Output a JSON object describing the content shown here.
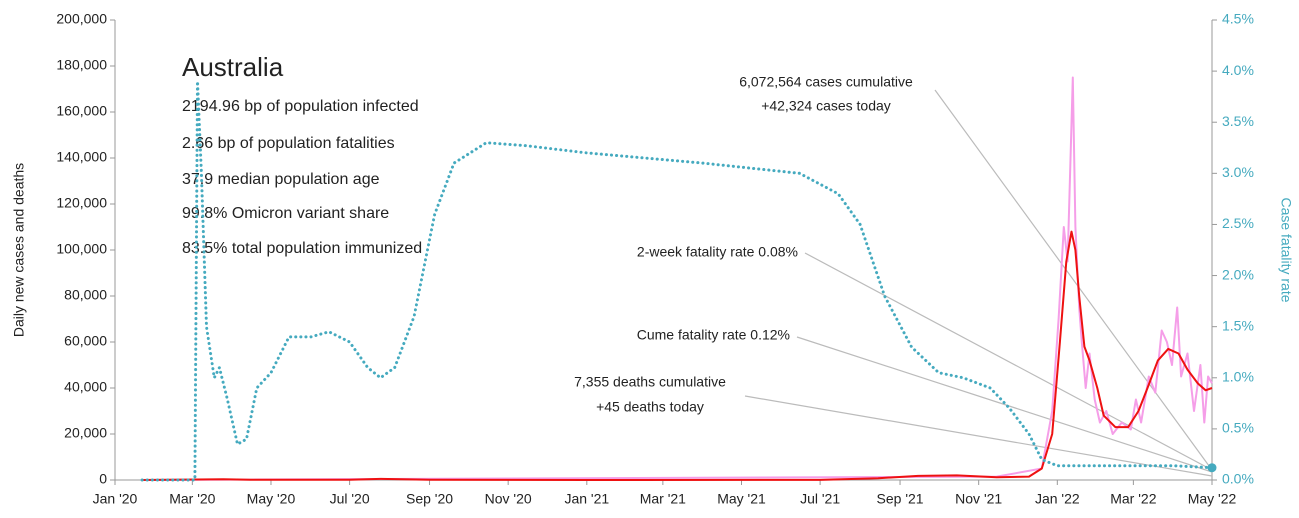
{
  "chart_data": {
    "type": "line",
    "title": "Australia",
    "info": [
      "2194.96 bp of population infected",
      "2.66 bp of population fatalities",
      "37.9 median population age",
      "99.8% Omicron variant share",
      "83.5% total population immunized"
    ],
    "annotations": [
      "6,072,564 cases cumulative",
      "+42,324 cases today",
      "2-week fatality rate 0.08%",
      "Cume fatality rate 0.12%",
      "7,355 deaths cumulative",
      "+45 deaths today"
    ],
    "ylabel": "Daily new cases and deaths",
    "y2label": "Case fatality rate",
    "xlim": [
      "2020-01-01",
      "2022-05-01"
    ],
    "xticks": [
      {
        "value": "2020-01-01",
        "label": "Jan '20"
      },
      {
        "value": "2020-03-01",
        "label": "Mar '20"
      },
      {
        "value": "2020-05-01",
        "label": "May '20"
      },
      {
        "value": "2020-07-01",
        "label": "Jul '20"
      },
      {
        "value": "2020-09-01",
        "label": "Sep '20"
      },
      {
        "value": "2020-11-01",
        "label": "Nov '20"
      },
      {
        "value": "2021-01-01",
        "label": "Jan '21"
      },
      {
        "value": "2021-03-01",
        "label": "Mar '21"
      },
      {
        "value": "2021-05-01",
        "label": "May '21"
      },
      {
        "value": "2021-07-01",
        "label": "Jul '21"
      },
      {
        "value": "2021-09-01",
        "label": "Sep '21"
      },
      {
        "value": "2021-11-01",
        "label": "Nov '21"
      },
      {
        "value": "2022-01-01",
        "label": "Jan '22"
      },
      {
        "value": "2022-03-01",
        "label": "Mar '22"
      },
      {
        "value": "2022-05-01",
        "label": "May '22"
      }
    ],
    "ylim": [
      0,
      200000
    ],
    "yticks": [
      0,
      {
        "value": 20000,
        "label": "20,000"
      },
      {
        "value": 40000,
        "label": "40,000"
      },
      {
        "value": 60000,
        "label": "60,000"
      },
      {
        "value": 80000,
        "label": "80,000"
      },
      {
        "value": 100000,
        "label": "100,000"
      },
      {
        "value": 120000,
        "label": "120,000"
      },
      {
        "value": 140000,
        "label": "140,000"
      },
      {
        "value": 160000,
        "label": "160,000"
      },
      {
        "value": 180000,
        "label": "180,000"
      },
      {
        "value": 200000,
        "label": "200,000"
      }
    ],
    "y2lim": [
      0,
      4.5
    ],
    "y2ticks": [
      {
        "value": 0,
        "label": "0.0%"
      },
      {
        "value": 0.5,
        "label": "0.5%"
      },
      {
        "value": 1,
        "label": "1.0%"
      },
      {
        "value": 1.5,
        "label": "1.5%"
      },
      {
        "value": 2,
        "label": "2.0%"
      },
      {
        "value": 2.5,
        "label": "2.5%"
      },
      {
        "value": 3,
        "label": "3.0%"
      },
      {
        "value": 3.5,
        "label": "3.5%"
      },
      {
        "value": 4,
        "label": "4.0%"
      },
      {
        "value": 4.5,
        "label": "4.5%"
      }
    ],
    "series": [
      {
        "color": "#f59ee8",
        "style": "solid",
        "x": [
          "2020-01-22",
          "2021-11-15",
          "2021-12-20",
          "2021-12-28",
          "2022-01-02",
          "2022-01-06",
          "2022-01-09",
          "2022-01-13",
          "2022-01-15",
          "2022-01-18",
          "2022-01-20",
          "2022-01-23",
          "2022-01-26",
          "2022-01-30",
          "2022-02-03",
          "2022-02-08",
          "2022-02-13",
          "2022-02-20",
          "2022-02-27",
          "2022-03-03",
          "2022-03-07",
          "2022-03-13",
          "2022-03-18",
          "2022-03-23",
          "2022-03-27",
          "2022-03-31",
          "2022-04-04",
          "2022-04-07",
          "2022-04-12",
          "2022-04-17",
          "2022-04-22",
          "2022-04-25",
          "2022-04-28",
          "2022-05-01"
        ],
        "values": [
          0,
          1500,
          5000,
          30000,
          70000,
          110000,
          95000,
          175000,
          110000,
          75000,
          60000,
          40000,
          55000,
          35000,
          25000,
          30000,
          20000,
          25000,
          22000,
          35000,
          25000,
          45000,
          38000,
          65000,
          60000,
          50000,
          75000,
          45000,
          55000,
          30000,
          50000,
          25000,
          45000,
          42000
        ]
      },
      {
        "color": "#ee1111",
        "style": "solid",
        "x": [
          "2020-01-22",
          "2020-03-25",
          "2020-04-15",
          "2020-07-01",
          "2020-07-25",
          "2020-09-01",
          "2021-01-01",
          "2021-07-01",
          "2021-08-15",
          "2021-09-15",
          "2021-10-15",
          "2021-11-15",
          "2021-12-10",
          "2021-12-20",
          "2021-12-28",
          "2022-01-03",
          "2022-01-08",
          "2022-01-12",
          "2022-01-15",
          "2022-01-18",
          "2022-01-22",
          "2022-01-26",
          "2022-02-01",
          "2022-02-06",
          "2022-02-15",
          "2022-02-25",
          "2022-03-05",
          "2022-03-12",
          "2022-03-20",
          "2022-03-28",
          "2022-04-05",
          "2022-04-12",
          "2022-04-20",
          "2022-04-26",
          "2022-05-01"
        ],
        "values": [
          0,
          350,
          100,
          100,
          500,
          100,
          20,
          50,
          800,
          1800,
          2000,
          1200,
          1500,
          5000,
          20000,
          60000,
          95000,
          108000,
          100000,
          80000,
          58000,
          52000,
          40000,
          28000,
          23000,
          23000,
          30000,
          40000,
          52000,
          57000,
          55000,
          48000,
          42000,
          39000,
          40000
        ]
      },
      {
        "color": "#45aabf",
        "style": "dotted",
        "axis": "y2",
        "x": [
          "2020-01-22",
          "2020-03-03",
          "2020-03-05",
          "2020-03-08",
          "2020-03-12",
          "2020-03-18",
          "2020-03-22",
          "2020-03-28",
          "2020-04-05",
          "2020-04-12",
          "2020-04-20",
          "2020-05-01",
          "2020-05-15",
          "2020-06-01",
          "2020-06-15",
          "2020-07-01",
          "2020-07-15",
          "2020-07-25",
          "2020-08-05",
          "2020-08-20",
          "2020-09-05",
          "2020-09-20",
          "2020-10-15",
          "2020-11-15",
          "2021-01-01",
          "2021-04-01",
          "2021-06-15",
          "2021-07-15",
          "2021-08-01",
          "2021-08-20",
          "2021-09-10",
          "2021-10-01",
          "2021-10-20",
          "2021-11-10",
          "2021-11-25",
          "2021-12-10",
          "2021-12-20",
          "2022-01-01",
          "2022-02-01",
          "2022-03-01",
          "2022-04-01",
          "2022-05-01"
        ],
        "values": [
          0,
          0,
          3.9,
          3.0,
          1.5,
          1.0,
          1.1,
          0.8,
          0.35,
          0.4,
          0.9,
          1.05,
          1.4,
          1.4,
          1.45,
          1.35,
          1.1,
          1.0,
          1.1,
          1.6,
          2.6,
          3.1,
          3.3,
          3.27,
          3.2,
          3.1,
          3.0,
          2.8,
          2.5,
          1.8,
          1.3,
          1.05,
          1.0,
          0.9,
          0.7,
          0.45,
          0.2,
          0.14,
          0.14,
          0.14,
          0.14,
          0.12
        ]
      }
    ]
  }
}
